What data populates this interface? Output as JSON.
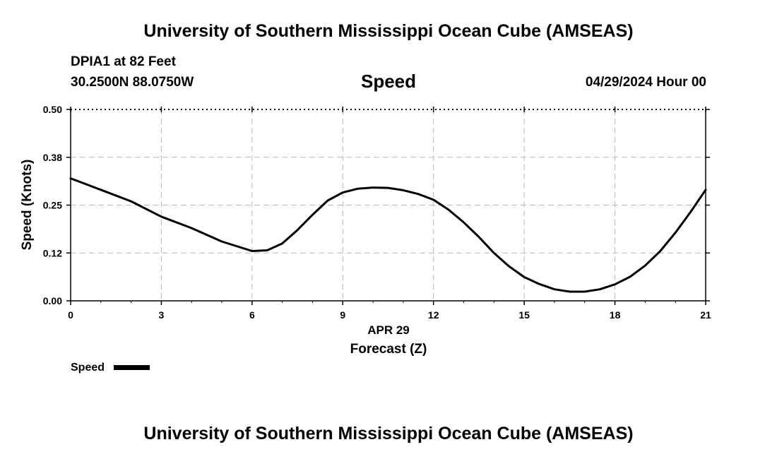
{
  "header": {
    "title": "University of Southern Mississippi Ocean Cube (AMSEAS)",
    "station": "DPIA1 at 82 Feet",
    "coordinates": "30.2500N  88.0750W",
    "variable": "Speed",
    "datetime": "04/29/2024 Hour 00"
  },
  "footer": {
    "title": "University of Southern Mississippi Ocean Cube (AMSEAS)"
  },
  "chart_data": {
    "type": "line",
    "title": "Speed",
    "xlabel": "Forecast (Z)",
    "date_label": "APR 29",
    "ylabel": "Speed (Knots)",
    "xlim": [
      0,
      21
    ],
    "ylim": [
      0,
      0.5
    ],
    "x_ticks": [
      0,
      3,
      6,
      9,
      12,
      15,
      18,
      21
    ],
    "x_tick_labels": [
      "0",
      "3",
      "6",
      "9",
      "12",
      "15",
      "18",
      "21"
    ],
    "y_ticks": [
      0,
      0.125,
      0.25,
      0.375,
      0.5
    ],
    "y_tick_labels": [
      "0.00",
      "0.12",
      "0.25",
      "0.38",
      "0.50"
    ],
    "grid": true,
    "legend": {
      "label": "Speed",
      "placement": "bottom-left"
    },
    "series": [
      {
        "name": "Speed",
        "color": "#000000",
        "x": [
          0,
          1,
          2,
          3,
          4,
          5,
          6,
          6.5,
          7,
          7.5,
          8,
          8.5,
          9,
          9.5,
          10,
          10.5,
          11,
          11.5,
          12,
          12.5,
          13,
          13.5,
          14,
          14.5,
          15,
          15.5,
          16,
          16.5,
          17,
          17.5,
          18,
          18.5,
          19,
          19.5,
          20,
          20.5,
          21
        ],
        "values": [
          0.32,
          0.29,
          0.26,
          0.22,
          0.19,
          0.155,
          0.13,
          0.132,
          0.15,
          0.185,
          0.225,
          0.262,
          0.283,
          0.293,
          0.296,
          0.295,
          0.289,
          0.279,
          0.264,
          0.238,
          0.205,
          0.167,
          0.125,
          0.09,
          0.062,
          0.044,
          0.03,
          0.024,
          0.024,
          0.03,
          0.043,
          0.063,
          0.092,
          0.13,
          0.178,
          0.232,
          0.29
        ]
      }
    ]
  }
}
